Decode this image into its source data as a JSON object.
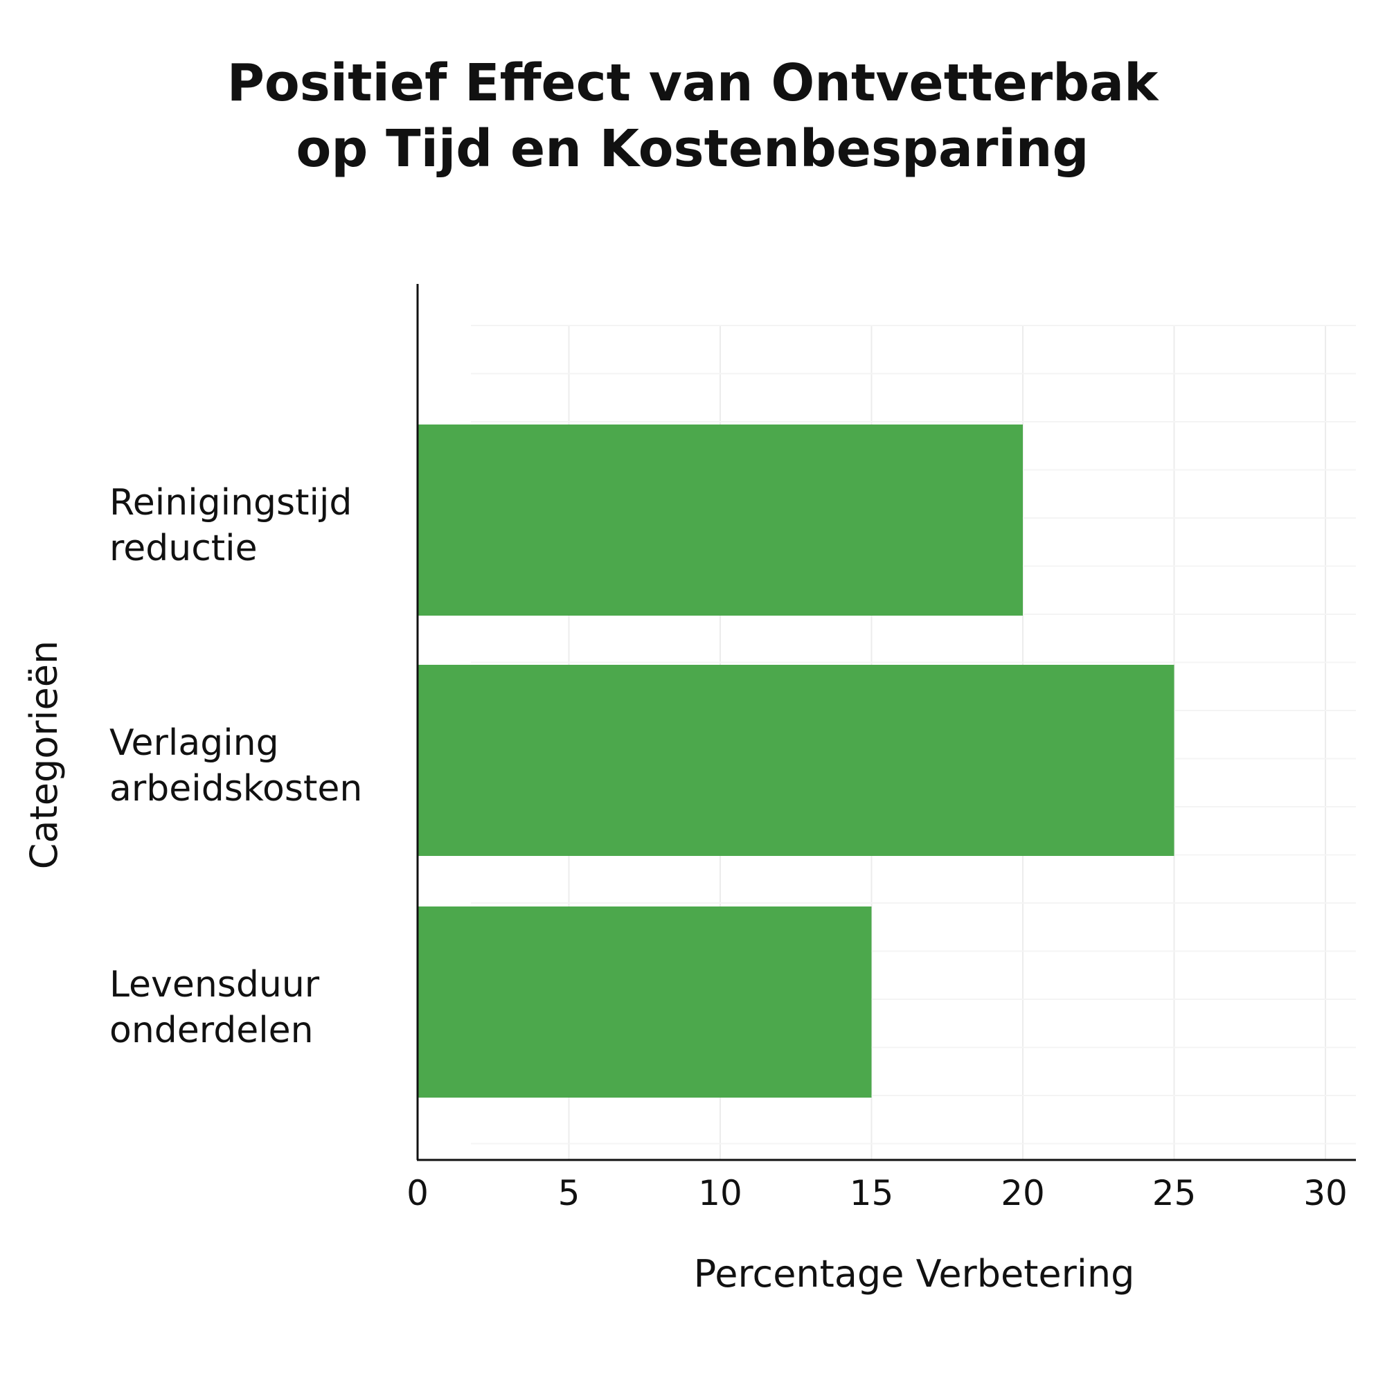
{
  "chart_data": {
    "type": "bar",
    "orientation": "horizontal",
    "title": [
      "Positief Effect van Ontvetterbak",
      "op Tijd en Kostenbesparing"
    ],
    "categories": [
      [
        "Reinigingstijd",
        "reductie"
      ],
      [
        "Verlaging",
        "arbeidskosten"
      ],
      [
        "Levensduur",
        "onderdelen"
      ]
    ],
    "values": [
      20,
      25,
      15
    ],
    "xlabel": "Percentage Verbetering",
    "ylabel": "Categorieën",
    "xlim": [
      0,
      31
    ],
    "xticks": [
      "0",
      "5",
      "10",
      "15",
      "20",
      "25",
      "30"
    ],
    "grid": true,
    "bar_color": "#4ca84c"
  }
}
